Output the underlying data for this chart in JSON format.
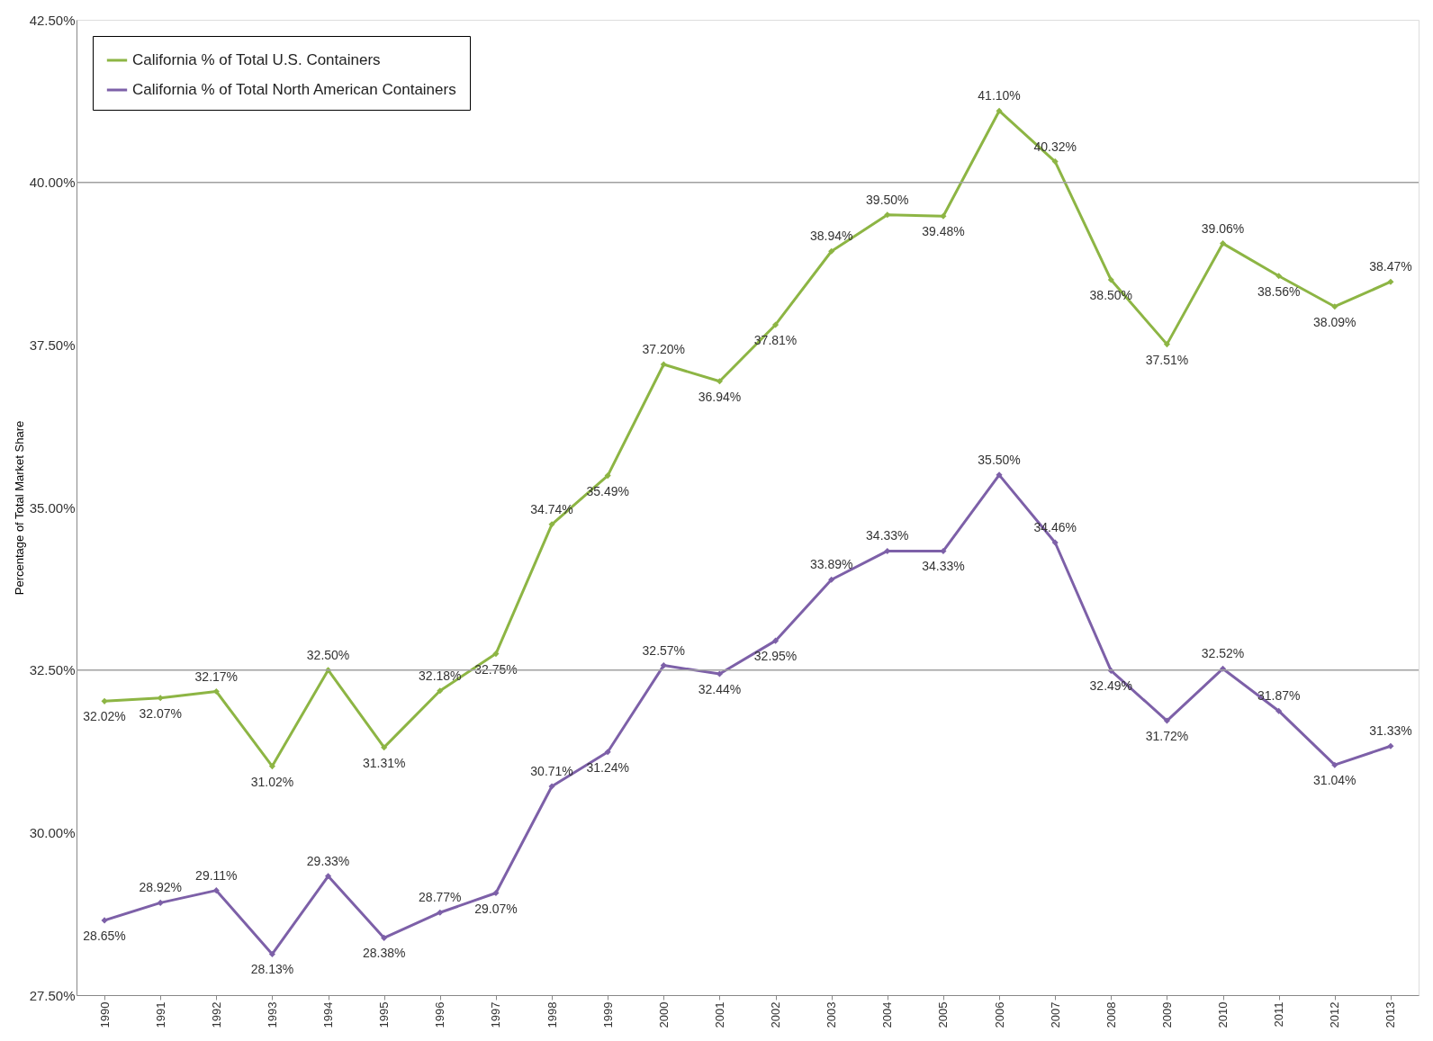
{
  "chart_data": {
    "type": "line",
    "ylabel": "Percentage of Total Market Share",
    "categories": [
      "1990",
      "1991",
      "1992",
      "1993",
      "1994",
      "1995",
      "1996",
      "1997",
      "1998",
      "1999",
      "2000",
      "2001",
      "2002",
      "2003",
      "2004",
      "2005",
      "2006",
      "2007",
      "2008",
      "2009",
      "2010",
      "2011",
      "2012",
      "2013"
    ],
    "series": [
      {
        "name": "California % of Total U.S. Containers",
        "color": "#8db544",
        "values": [
          32.02,
          32.07,
          32.17,
          31.02,
          32.5,
          31.31,
          32.18,
          32.75,
          34.74,
          35.49,
          37.2,
          36.94,
          37.81,
          38.94,
          39.5,
          39.48,
          41.1,
          40.32,
          38.5,
          37.51,
          39.06,
          38.56,
          38.09,
          38.47
        ],
        "value_labels": [
          "32.02%",
          "32.07%",
          "32.17%",
          "31.02%",
          "32.50%",
          "31.31%",
          "32.18%",
          "32.75%",
          "34.74%",
          "35.49%",
          "37.20%",
          "36.94%",
          "37.81%",
          "38.94%",
          "39.50%",
          "39.48%",
          "41.10%",
          "40.32%",
          "38.50%",
          "37.51%",
          "39.06%",
          "38.56%",
          "38.09%",
          "38.47%"
        ]
      },
      {
        "name": "California % of Total North American Containers",
        "color": "#7d60a8",
        "values": [
          28.65,
          28.92,
          29.11,
          28.13,
          29.33,
          28.38,
          28.77,
          29.07,
          30.71,
          31.24,
          32.57,
          32.44,
          32.95,
          33.89,
          34.33,
          34.33,
          35.5,
          34.46,
          32.49,
          31.72,
          32.52,
          31.87,
          31.04,
          31.33
        ],
        "value_labels": [
          "28.65%",
          "28.92%",
          "29.11%",
          "28.13%",
          "29.33%",
          "28.38%",
          "28.77%",
          "29.07%",
          "30.71%",
          "31.24%",
          "32.57%",
          "32.44%",
          "32.95%",
          "33.89%",
          "34.33%",
          "34.33%",
          "35.50%",
          "34.46%",
          "32.49%",
          "31.72%",
          "32.52%",
          "31.87%",
          "31.04%",
          "31.33%"
        ]
      }
    ],
    "ylim": [
      27.5,
      42.5
    ],
    "yticks": [
      {
        "value": 27.5,
        "label": "27.50%"
      },
      {
        "value": 30,
        "label": "30.00%"
      },
      {
        "value": 32.5,
        "label": "32.50%"
      },
      {
        "value": 35,
        "label": "35.00%"
      },
      {
        "value": 37.5,
        "label": "37.50%"
      },
      {
        "value": 40,
        "label": "40.00%"
      },
      {
        "value": 42.5,
        "label": "42.50%"
      }
    ],
    "ref_lines": [
      {
        "axis": "y",
        "value": 32.5,
        "color": "#a0a0a0"
      },
      {
        "axis": "y",
        "value": 40,
        "color": "#a0a0a0"
      }
    ],
    "legend": "top left",
    "marker": "diamond",
    "line_style": "solid",
    "grid": false
  }
}
